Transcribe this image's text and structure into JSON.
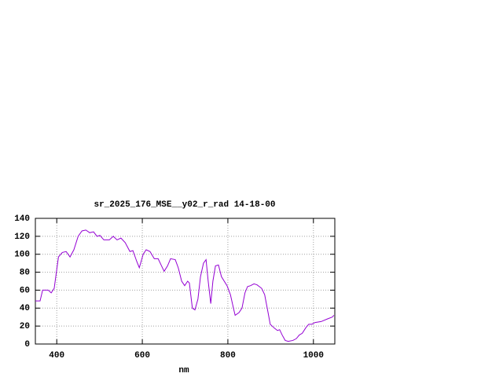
{
  "chart_data": {
    "type": "line",
    "title": "sr_2025_176_MSE__y02_r_rad 14-18-00",
    "x_label": "nm",
    "color": "#9400d3",
    "grid": true,
    "x": [
      350,
      361,
      367,
      380,
      387,
      394,
      404,
      413,
      422,
      431,
      440,
      450,
      459,
      468,
      477,
      486,
      494,
      501,
      510,
      523,
      532,
      541,
      550,
      560,
      571,
      578,
      587,
      593,
      602,
      609,
      618,
      628,
      637,
      644,
      651,
      659,
      666,
      677,
      684,
      692,
      699,
      706,
      710,
      717,
      723,
      730,
      736,
      743,
      749,
      754,
      760,
      765,
      771,
      778,
      785,
      798,
      806,
      813,
      817,
      826,
      833,
      840,
      846,
      853,
      861,
      868,
      879,
      886,
      894,
      899,
      908,
      916,
      921,
      927,
      934,
      941,
      952,
      960,
      967,
      974,
      982,
      989,
      996,
      1004,
      1018,
      1033,
      1044,
      1048
    ],
    "values": [
      48,
      48,
      60,
      60,
      57,
      62,
      97,
      102,
      103,
      97,
      105,
      120,
      126,
      127,
      124,
      125,
      120,
      121,
      116,
      116,
      120,
      116,
      118,
      113,
      103,
      104,
      92,
      85,
      100,
      105,
      103,
      95,
      95,
      88,
      81,
      87,
      95,
      94,
      85,
      70,
      65,
      70,
      68,
      40,
      38,
      50,
      75,
      90,
      94,
      70,
      45,
      70,
      87,
      88,
      75,
      65,
      55,
      40,
      32,
      35,
      40,
      57,
      64,
      65,
      67,
      66,
      62,
      55,
      35,
      22,
      18,
      15,
      16,
      10,
      4,
      3,
      4,
      6,
      10,
      12,
      18,
      22,
      22,
      24,
      25,
      28,
      30,
      32
    ],
    "xlim": [
      350,
      1050
    ],
    "ylim": [
      0,
      140
    ],
    "xticks": [
      400,
      600,
      800,
      1000
    ],
    "yticks": [
      0,
      20,
      40,
      60,
      80,
      100,
      120,
      140
    ]
  }
}
